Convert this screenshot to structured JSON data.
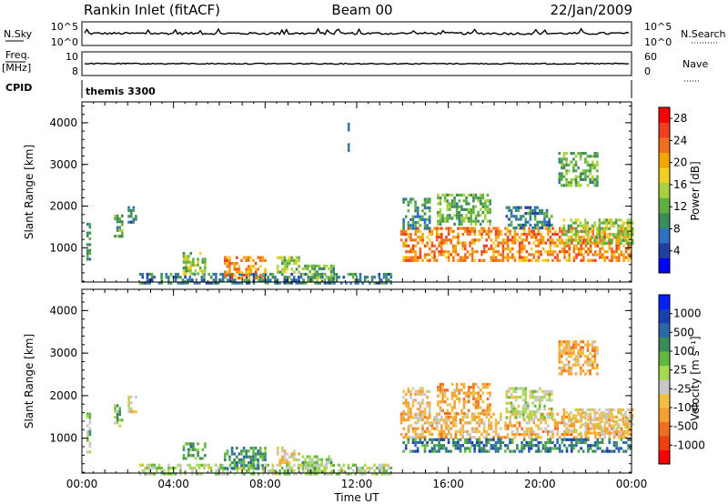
{
  "header": {
    "station": "Rankin Inlet (fitACF)",
    "beam": "Beam 00",
    "date": "22/Jan/2009"
  },
  "top_panels": {
    "nsky_label": "N.Sky",
    "nsky_ticks": [
      "10^5",
      "10^0"
    ],
    "nsearch_label": "N.Search",
    "nsearch_ticks": [
      "10^5",
      "10^0"
    ],
    "freq_label_1": "Freq.",
    "freq_label_2": "[MHz]",
    "freq_ticks": [
      "10",
      "8"
    ],
    "nave_label": "Nave",
    "nave_ticks": [
      "60",
      "0"
    ],
    "cpid_label": "CPID",
    "cpid_value": "themis 3300"
  },
  "colors": {
    "power_scale": [
      "#0000ff",
      "#1f3fa3",
      "#2f6fbf",
      "#3c8c5a",
      "#5fb040",
      "#a8d040",
      "#f0d020",
      "#f5a500",
      "#f07020",
      "#f04020",
      "#ff0000"
    ],
    "velocity_scale": [
      "#ff0000",
      "#f04010",
      "#f07020",
      "#f5a030",
      "#f2c040",
      "#c8c8c8",
      "#a6d850",
      "#60b840",
      "#3a8a5a",
      "#2a6aa8",
      "#1a3fb0",
      "#0020ff"
    ]
  },
  "chart_data": [
    {
      "type": "heatmap",
      "name": "power",
      "ylabel": "Slant Range [km]",
      "ylim": [
        180,
        4500
      ],
      "yticks": [
        "1000",
        "2000",
        "3000",
        "4000"
      ],
      "xlim": [
        0,
        24
      ],
      "xticks": [
        "00:00",
        "04:00",
        "08:00",
        "12:00",
        "16:00",
        "20:00",
        "00:00"
      ],
      "colorbar": {
        "label": "Power [dB]",
        "ticks": [
          "4",
          "8",
          "12",
          "16",
          "20",
          "24",
          "28"
        ],
        "range": [
          0,
          30
        ]
      },
      "regions": [
        {
          "t0": 0.2,
          "t1": 0.4,
          "r0": 700,
          "r1": 1600,
          "v": 10
        },
        {
          "t0": 1.4,
          "t1": 1.8,
          "r0": 1300,
          "r1": 1800,
          "v": 12
        },
        {
          "t0": 2.0,
          "t1": 2.4,
          "r0": 1600,
          "r1": 2000,
          "v": 8
        },
        {
          "t0": 2.5,
          "t1": 13.5,
          "r0": 180,
          "r1": 400,
          "v": 8
        },
        {
          "t0": 4.4,
          "t1": 5.4,
          "r0": 400,
          "r1": 900,
          "v": 14
        },
        {
          "t0": 6.2,
          "t1": 8.0,
          "r0": 300,
          "r1": 800,
          "v": 22
        },
        {
          "t0": 8.5,
          "t1": 9.5,
          "r0": 400,
          "r1": 800,
          "v": 14
        },
        {
          "t0": 9.6,
          "t1": 11.0,
          "r0": 250,
          "r1": 600,
          "v": 12
        },
        {
          "t0": 11.6,
          "t1": 11.7,
          "r0": 3000,
          "r1": 4000,
          "v": 6
        },
        {
          "t0": 13.9,
          "t1": 24.0,
          "r0": 700,
          "r1": 1500,
          "v": 22
        },
        {
          "t0": 14.0,
          "t1": 15.2,
          "r0": 1500,
          "r1": 2200,
          "v": 10
        },
        {
          "t0": 15.5,
          "t1": 17.8,
          "r0": 1600,
          "r1": 2300,
          "v": 12
        },
        {
          "t0": 18.5,
          "t1": 20.5,
          "r0": 1500,
          "r1": 2000,
          "v": 8
        },
        {
          "t0": 20.8,
          "t1": 22.5,
          "r0": 2500,
          "r1": 3300,
          "v": 12
        },
        {
          "t0": 21.0,
          "t1": 24.0,
          "r0": 1100,
          "r1": 1700,
          "v": 14
        }
      ]
    },
    {
      "type": "heatmap",
      "name": "velocity",
      "ylabel": "Slant Range [km]",
      "ylim": [
        180,
        4500
      ],
      "yticks": [
        "1000",
        "2000",
        "3000",
        "4000"
      ],
      "xlim": [
        0,
        24
      ],
      "xticks": [
        "00:00",
        "04:00",
        "08:00",
        "12:00",
        "16:00",
        "20:00",
        "00:00"
      ],
      "xlabel": "Time UT",
      "colorbar": {
        "label": "Velocity [m s⁻¹]",
        "ticks": [
          "1000",
          "500",
          "100",
          "25",
          "-25",
          "-100",
          "-500",
          "-1000"
        ],
        "range": [
          -1000,
          1000
        ]
      },
      "regions": [
        {
          "t0": 0.2,
          "t1": 0.4,
          "r0": 700,
          "r1": 1600,
          "v": 100
        },
        {
          "t0": 1.4,
          "t1": 1.8,
          "r0": 1300,
          "r1": 1800,
          "v": 200
        },
        {
          "t0": 2.0,
          "t1": 2.4,
          "r0": 1600,
          "r1": 2000,
          "v": -150
        },
        {
          "t0": 2.5,
          "t1": 13.5,
          "r0": 180,
          "r1": 400,
          "v": 60
        },
        {
          "t0": 4.4,
          "t1": 5.4,
          "r0": 500,
          "r1": 900,
          "v": 300
        },
        {
          "t0": 6.2,
          "t1": 8.0,
          "r0": 300,
          "r1": 800,
          "v": 400
        },
        {
          "t0": 8.5,
          "t1": 9.5,
          "r0": 400,
          "r1": 800,
          "v": -200
        },
        {
          "t0": 9.6,
          "t1": 11.0,
          "r0": 250,
          "r1": 600,
          "v": 150
        },
        {
          "t0": 13.9,
          "t1": 24.0,
          "r0": 1000,
          "r1": 1600,
          "v": -300
        },
        {
          "t0": 14.0,
          "t1": 24.0,
          "r0": 700,
          "r1": 1000,
          "v": 500
        },
        {
          "t0": 14.0,
          "t1": 15.2,
          "r0": 1500,
          "r1": 2200,
          "v": -250
        },
        {
          "t0": 15.5,
          "t1": 17.8,
          "r0": 1600,
          "r1": 2300,
          "v": -400
        },
        {
          "t0": 18.5,
          "t1": 20.5,
          "r0": 1500,
          "r1": 2200,
          "v": 0
        },
        {
          "t0": 20.8,
          "t1": 22.5,
          "r0": 2500,
          "r1": 3300,
          "v": -350
        },
        {
          "t0": 21.0,
          "t1": 24.0,
          "r0": 1100,
          "r1": 1700,
          "v": -200
        }
      ]
    }
  ]
}
